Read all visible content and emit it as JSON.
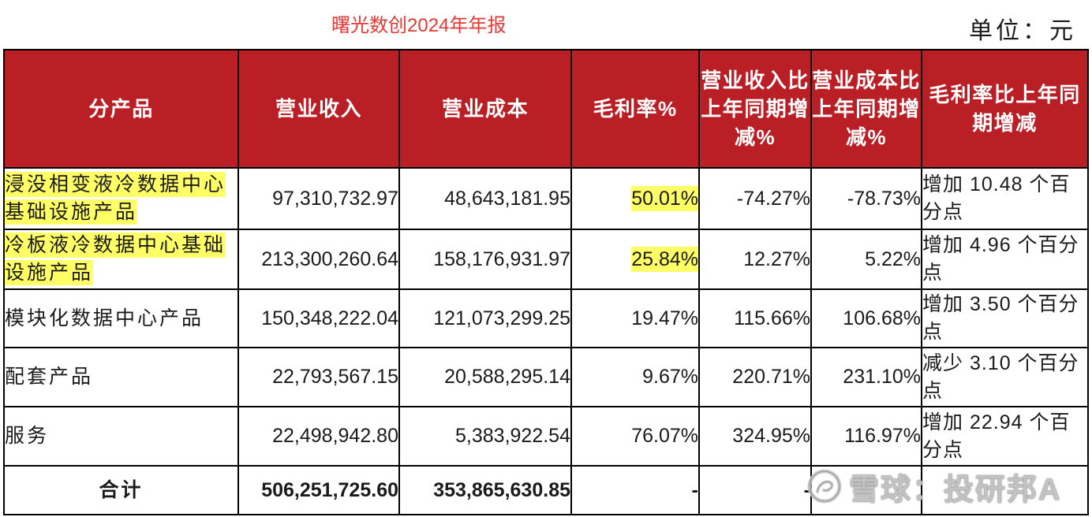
{
  "title": "曙光数创2024年年报",
  "unit": "单位：元",
  "colors": {
    "header_background": "#BA1F26",
    "header_text": "#FFFFFF",
    "title_text": "#E53935",
    "highlight": "#FFFF66",
    "grid_lines": "#000000"
  },
  "table": {
    "headers": {
      "product": "分产品",
      "revenue": "营业收入",
      "cost": "营业成本",
      "gross_margin": "毛利率%",
      "revenue_change": "营业收入比上年同期增减%",
      "cost_change": "营业成本比上年同期增减%",
      "margin_change": "毛利率比上年同期增减"
    },
    "rows": [
      {
        "product": "浸没相变液冷数据中心基础设施产品",
        "revenue": "97,310,732.97",
        "cost": "48,643,181.95",
        "gross_margin": "50.01%",
        "revenue_change": "-74.27%",
        "cost_change": "-78.73%",
        "margin_change": "增加 10.48 个百分点",
        "highlight": true
      },
      {
        "product": "冷板液冷数据中心基础设施产品",
        "revenue": "213,300,260.64",
        "cost": "158,176,931.97",
        "gross_margin": "25.84%",
        "revenue_change": "12.27%",
        "cost_change": "5.22%",
        "margin_change": "增加 4.96 个百分点",
        "highlight": true
      },
      {
        "product": "模块化数据中心产品",
        "revenue": "150,348,222.04",
        "cost": "121,073,299.25",
        "gross_margin": "19.47%",
        "revenue_change": "115.66%",
        "cost_change": "106.68%",
        "margin_change": "增加 3.50 个百分点",
        "highlight": false
      },
      {
        "product": "配套产品",
        "revenue": "22,793,567.15",
        "cost": "20,588,295.14",
        "gross_margin": "9.67%",
        "revenue_change": "220.71%",
        "cost_change": "231.10%",
        "margin_change": "减少 3.10 个百分点",
        "highlight": false
      },
      {
        "product": "服务",
        "revenue": "22,498,942.80",
        "cost": "5,383,922.54",
        "gross_margin": "76.07%",
        "revenue_change": "324.95%",
        "cost_change": "116.97%",
        "margin_change": "增加 22.94 个百分点",
        "highlight": false
      }
    ],
    "total": {
      "label": "合计",
      "revenue": "506,251,725.60",
      "cost": "353,865,630.85",
      "gross_margin": "-",
      "revenue_change": "-"
    }
  },
  "watermark": {
    "text": "雪球：投研邦A",
    "icon": "snowball-logo-icon"
  }
}
